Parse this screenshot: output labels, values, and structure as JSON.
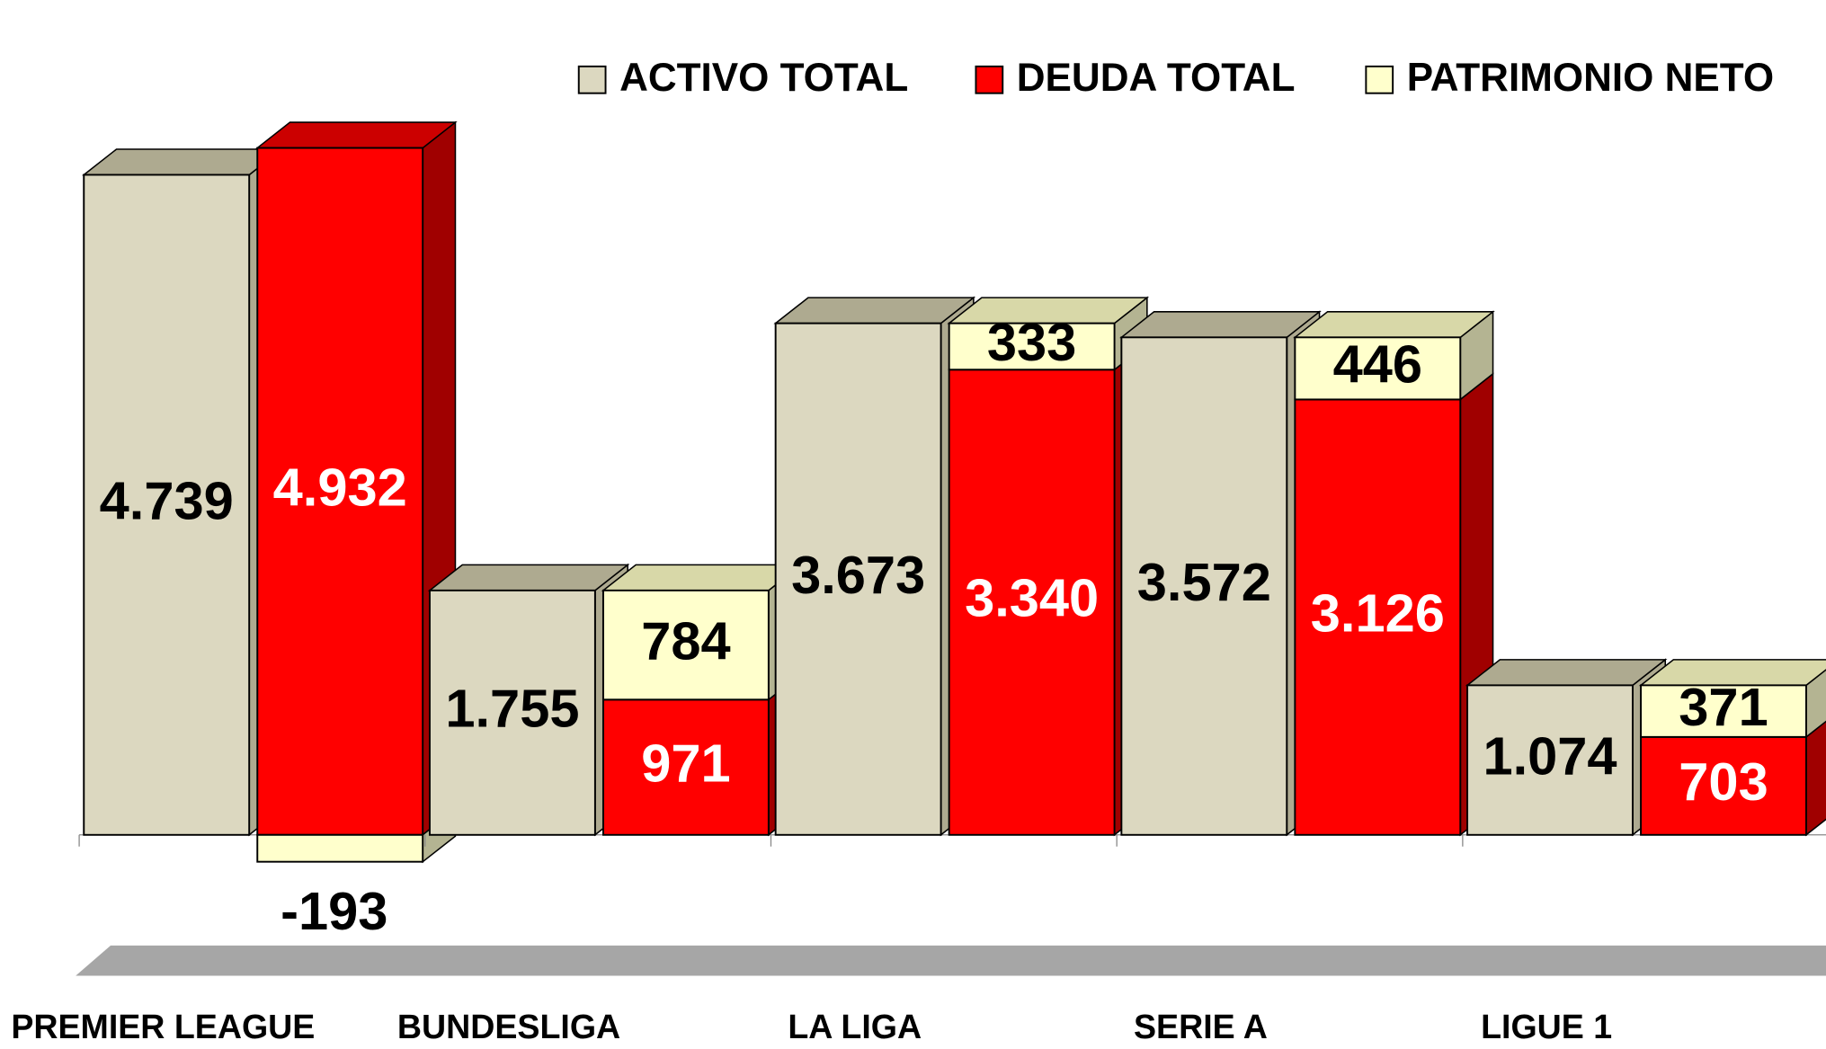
{
  "chart_data": {
    "type": "bar3d",
    "categories": [
      "PREMIER LEAGUE",
      "BUNDESLIGA",
      "LA LIGA",
      "SERIE A",
      "LIGUE 1"
    ],
    "series": [
      {
        "name": "ACTIVO TOTAL",
        "color": "#dcd8c0",
        "values": [
          4739,
          1755,
          3673,
          3572,
          1074
        ],
        "value_labels": [
          "4.739",
          "1.755",
          "3.673",
          "3.572",
          "1.074"
        ]
      },
      {
        "name": "DEUDA TOTAL",
        "color": "#ff0000",
        "values": [
          4932,
          971,
          3340,
          3126,
          703
        ],
        "value_labels": [
          "4.932",
          "971",
          "3.340",
          "3.126",
          "703"
        ]
      },
      {
        "name": "PATRIMONIO NETO",
        "color": "#ffffcc",
        "values": [
          -193,
          784,
          333,
          446,
          371
        ],
        "value_labels": [
          "-193",
          "784",
          "333",
          "446",
          "371"
        ]
      }
    ]
  }
}
